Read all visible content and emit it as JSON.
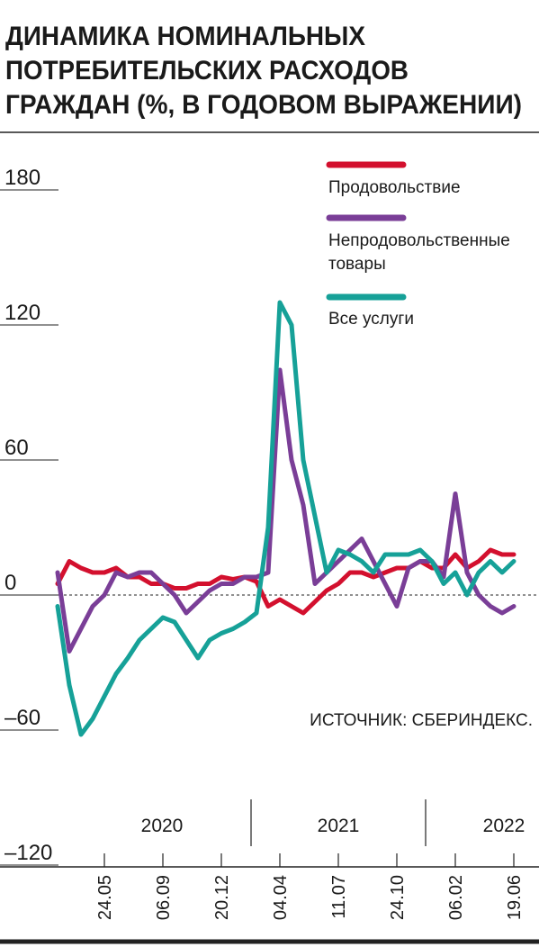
{
  "chart_data": {
    "type": "line",
    "title": [
      "ДИНАМИКА НОМИНАЛЬНЫХ",
      "ПОТРЕБИТЕЛЬСКИХ РАСХОДОВ",
      "ГРАЖДАН (%, В ГОДОВОМ ВЫРАЖЕНИИ)"
    ],
    "source": "ИСТОЧНИК: СБЕРИНДЕКС.",
    "years": [
      "2020",
      "2021",
      "2022"
    ],
    "categories": [
      null,
      null,
      null,
      null,
      "24.05",
      null,
      null,
      null,
      null,
      "06.09",
      null,
      null,
      null,
      null,
      "20.12",
      null,
      null,
      null,
      null,
      "04.04",
      null,
      null,
      null,
      null,
      "11.07",
      null,
      null,
      null,
      null,
      "24.10",
      null,
      null,
      null,
      null,
      "06.02",
      null,
      null,
      null,
      null,
      "19.06"
    ],
    "ylim": [
      -120,
      180
    ],
    "yticks": [
      {
        "value": -120,
        "label": "–120"
      },
      {
        "value": -60,
        "label": "–60"
      },
      0,
      60,
      120,
      180
    ],
    "series": [
      {
        "name": "Продовольствие",
        "color": "#d3102e",
        "values": [
          5,
          15,
          12,
          10,
          10,
          12,
          8,
          8,
          5,
          5,
          3,
          3,
          5,
          5,
          8,
          7,
          8,
          6,
          -5,
          -2,
          -5,
          -8,
          -3,
          2,
          5,
          10,
          10,
          8,
          10,
          12,
          12,
          15,
          12,
          12,
          18,
          12,
          15,
          20,
          18,
          18
        ]
      },
      {
        "name": "Непродовольственные товары",
        "color": "#7a3e97",
        "values": [
          10,
          -25,
          -15,
          -5,
          0,
          10,
          8,
          10,
          10,
          5,
          0,
          -8,
          -3,
          2,
          5,
          5,
          8,
          8,
          10,
          100,
          60,
          40,
          5,
          10,
          15,
          20,
          25,
          15,
          5,
          -5,
          12,
          15,
          15,
          8,
          45,
          10,
          0,
          -5,
          -8,
          -5
        ]
      },
      {
        "name": "Все услуги",
        "color": "#16a198",
        "values": [
          -5,
          -40,
          -62,
          -55,
          -45,
          -35,
          -28,
          -20,
          -15,
          -10,
          -12,
          -20,
          -28,
          -20,
          -17,
          -15,
          -12,
          -8,
          30,
          130,
          120,
          60,
          35,
          10,
          20,
          18,
          15,
          10,
          18,
          18,
          18,
          20,
          15,
          5,
          10,
          0,
          10,
          15,
          10,
          15
        ]
      }
    ]
  }
}
